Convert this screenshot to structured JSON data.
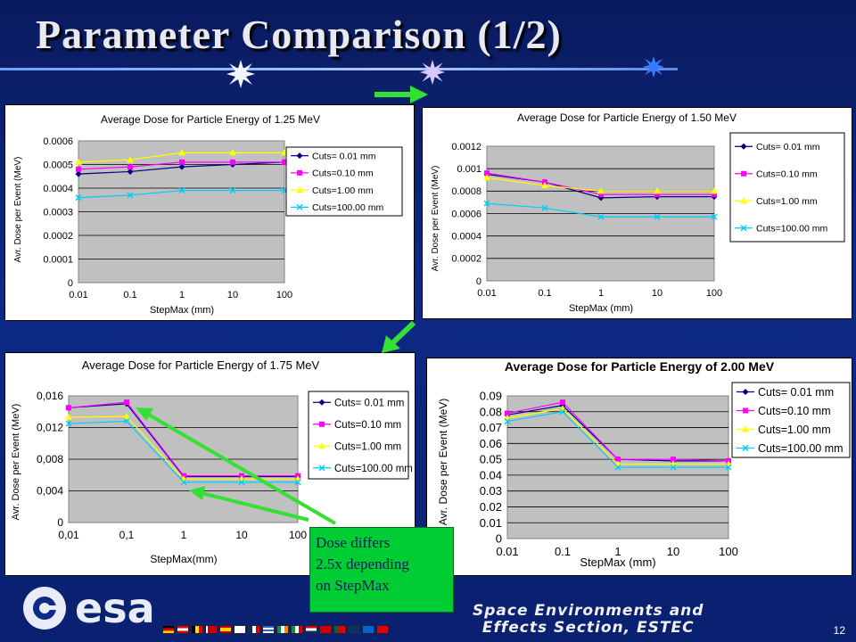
{
  "slide": {
    "title": "Parameter Comparison (1/2)",
    "callout": [
      "Dose differs",
      "2.5x depending",
      "on StepMax"
    ],
    "footer": [
      "Space Environments and",
      "Effects Section, ESTEC"
    ],
    "page_number": "12",
    "logo_text": "esa",
    "colors": {
      "background": "#0d2a86",
      "callout": "#00cc33",
      "arrow": "#33e033"
    }
  },
  "chart_data": [
    {
      "type": "line",
      "title": "Average Dose for Particle Energy of 1.25 MeV",
      "xlabel": "StepMax (mm)",
      "ylabel": "Avr. Dose per Event (MeV)",
      "x": [
        "0.01",
        "0.1",
        "1",
        "10",
        "100"
      ],
      "xscale": "log",
      "y_ticks": [
        "0",
        "0.0001",
        "0.0002",
        "0.0003",
        "0.0004",
        "0.0005",
        "0.0006"
      ],
      "ylim": [
        0,
        0.0006
      ],
      "grid": "horizontal",
      "legend": "right",
      "series": [
        {
          "name": "Cuts= 0.01 mm",
          "values": [
            0.00046,
            0.00047,
            0.00049,
            0.0005,
            0.00051
          ]
        },
        {
          "name": "Cuts=0.10 mm",
          "values": [
            0.00048,
            0.00049,
            0.00051,
            0.00051,
            0.00051
          ]
        },
        {
          "name": "Cuts=1.00 mm",
          "values": [
            0.00051,
            0.00052,
            0.00055,
            0.00055,
            0.00055
          ]
        },
        {
          "name": "Cuts=100.00 mm",
          "values": [
            0.00036,
            0.00037,
            0.00039,
            0.00039,
            0.00039
          ]
        }
      ]
    },
    {
      "type": "line",
      "title": "Average Dose for Particle Energy of 1.50 MeV",
      "xlabel": "StepMax (mm)",
      "ylabel": "Avr. Dose per Event (MeV)",
      "x": [
        "0.01",
        "0.1",
        "1",
        "10",
        "100"
      ],
      "xscale": "log",
      "y_ticks": [
        "0",
        "0.0002",
        "0.0004",
        "0.0006",
        "0.0008",
        "0.001",
        "0.0012"
      ],
      "ylim": [
        0,
        0.0012
      ],
      "grid": "horizontal",
      "legend": "right",
      "series": [
        {
          "name": "Cuts= 0.01 mm",
          "values": [
            0.00095,
            0.00088,
            0.00074,
            0.00075,
            0.00075
          ]
        },
        {
          "name": "Cuts=0.10 mm",
          "values": [
            0.00096,
            0.00088,
            0.00077,
            0.00077,
            0.00077
          ]
        },
        {
          "name": "Cuts=1.00 mm",
          "values": [
            0.00092,
            0.00085,
            0.0008,
            0.0008,
            0.0008
          ]
        },
        {
          "name": "Cuts=100.00 mm",
          "values": [
            0.00069,
            0.00065,
            0.00057,
            0.00057,
            0.00057
          ]
        }
      ]
    },
    {
      "type": "line",
      "title": "Average Dose for Particle Energy of 1.75 MeV",
      "xlabel": "StepMax(mm)",
      "ylabel": "Avr. Dose per Event (MeV)",
      "x": [
        "0,01",
        "0,1",
        "1",
        "10",
        "100"
      ],
      "xscale": "log",
      "y_ticks": [
        "0",
        "0,004",
        "0,008",
        "0,012",
        "0,016"
      ],
      "ylim": [
        0,
        0.016
      ],
      "grid": "horizontal",
      "legend": "right",
      "series": [
        {
          "name": "Cuts= 0.01 mm",
          "values": [
            0.0145,
            0.015,
            0.0058,
            0.0058,
            0.0058
          ]
        },
        {
          "name": "Cuts=0.10 mm",
          "values": [
            0.0145,
            0.0152,
            0.0059,
            0.0059,
            0.0059
          ]
        },
        {
          "name": "Cuts=1.00 mm",
          "values": [
            0.0133,
            0.0134,
            0.0055,
            0.0055,
            0.0055
          ]
        },
        {
          "name": "Cuts=100.00 mm",
          "values": [
            0.0125,
            0.0128,
            0.0051,
            0.0051,
            0.0051
          ]
        }
      ]
    },
    {
      "type": "line",
      "title": "Average Dose for Particle Energy of 2.00 MeV",
      "xlabel": "StepMax (mm)",
      "ylabel": "Avr. Dose per Event (MeV)",
      "x": [
        "0.01",
        "0.1",
        "1",
        "10",
        "100"
      ],
      "xscale": "log",
      "y_ticks": [
        "0",
        "0.01",
        "0.02",
        "0.03",
        "0.04",
        "0.05",
        "0.06",
        "0.07",
        "0.08",
        "0.09"
      ],
      "ylim": [
        0,
        0.09
      ],
      "grid": "horizontal",
      "legend": "right",
      "series": [
        {
          "name": "Cuts= 0.01 mm",
          "values": [
            0.078,
            0.084,
            0.05,
            0.049,
            0.049
          ]
        },
        {
          "name": "Cuts=0.10 mm",
          "values": [
            0.079,
            0.086,
            0.05,
            0.05,
            0.049
          ]
        },
        {
          "name": "Cuts=1.00 mm",
          "values": [
            0.076,
            0.082,
            0.047,
            0.047,
            0.047
          ]
        },
        {
          "name": "Cuts=100.00 mm",
          "values": [
            0.074,
            0.08,
            0.045,
            0.045,
            0.045
          ]
        }
      ]
    }
  ]
}
